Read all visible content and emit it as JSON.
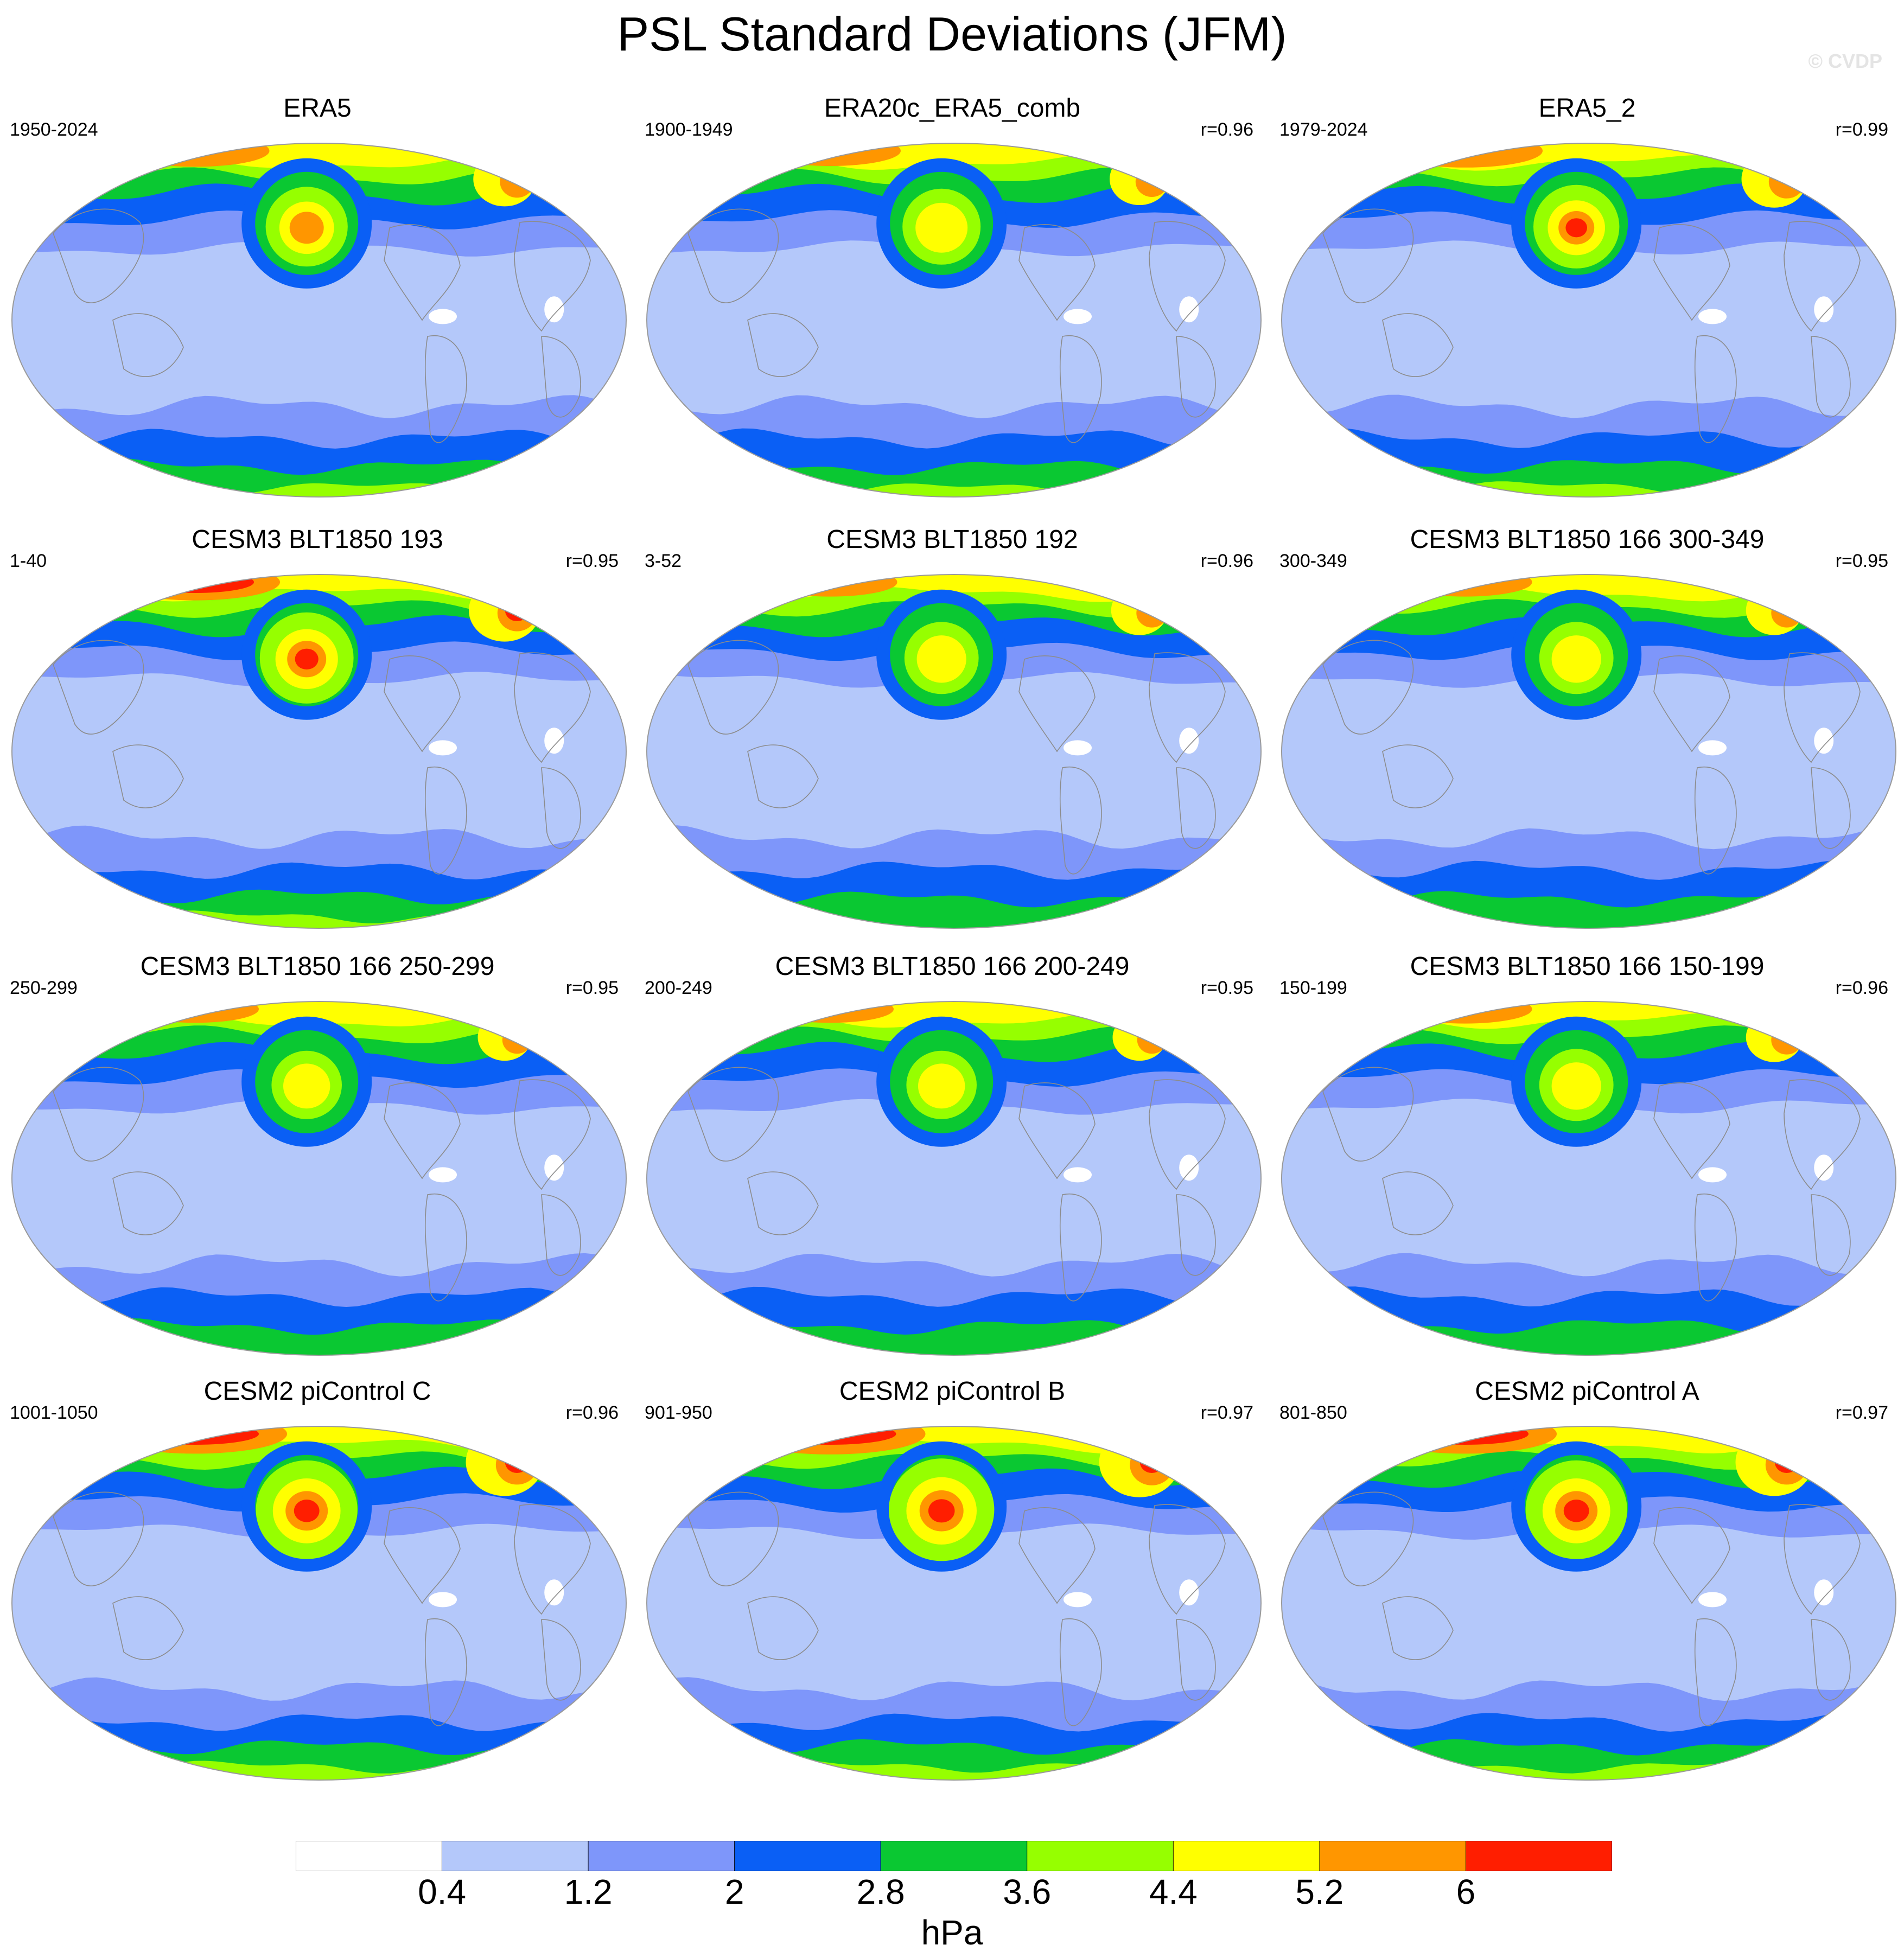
{
  "title": "PSL Standard Deviations (JFM)",
  "watermark": "© CVDP",
  "panels": [
    {
      "title": "ERA5",
      "years": "1950-2024",
      "r": "",
      "intensity": 1.05
    },
    {
      "title": "ERA20c_ERA5_comb",
      "years": "1900-1949",
      "r": "r=0.96",
      "intensity": 1.0
    },
    {
      "title": "ERA5_2",
      "years": "1979-2024",
      "r": "r=0.99",
      "intensity": 1.1
    },
    {
      "title": "CESM3 BLT1850 193",
      "years": "1-40",
      "r": "r=0.95",
      "intensity": 1.2
    },
    {
      "title": "CESM3 BLT1850 192",
      "years": "3-52",
      "r": "r=0.96",
      "intensity": 0.95
    },
    {
      "title": "CESM3 BLT1850 166 300-349",
      "years": "300-349",
      "r": "r=0.95",
      "intensity": 0.95
    },
    {
      "title": "CESM3 BLT1850 166 250-299",
      "years": "250-299",
      "r": "r=0.95",
      "intensity": 0.9
    },
    {
      "title": "CESM3 BLT1850 166 200-249",
      "years": "200-249",
      "r": "r=0.95",
      "intensity": 0.9
    },
    {
      "title": "CESM3 BLT1850 166 150-199",
      "years": "150-199",
      "r": "r=0.96",
      "intensity": 0.95
    },
    {
      "title": "CESM2 piControl C",
      "years": "1001-1050",
      "r": "r=0.96",
      "intensity": 1.3
    },
    {
      "title": "CESM2 piControl B",
      "years": "901-950",
      "r": "r=0.97",
      "intensity": 1.35
    },
    {
      "title": "CESM2 piControl A",
      "years": "801-850",
      "r": "r=0.97",
      "intensity": 1.3
    }
  ],
  "colorbar": {
    "labels": [
      "0.4",
      "1.2",
      "2",
      "2.8",
      "3.6",
      "4.4",
      "5.2",
      "6"
    ],
    "colors": [
      "#ffffff",
      "#b4c8fa",
      "#7e96fa",
      "#0a5ff5",
      "#0ac832",
      "#96ff00",
      "#ffff00",
      "#ff9600",
      "#ff1e00"
    ],
    "units": "hPa"
  }
}
